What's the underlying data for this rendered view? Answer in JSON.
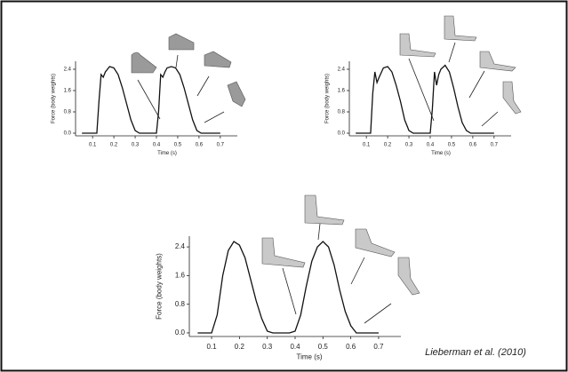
{
  "chart_data": [
    {
      "type": "line",
      "x_label": "Time (s)",
      "y_label": "Force (body weights)",
      "color": "#111111",
      "x": [
        0.05,
        0.12,
        0.13,
        0.14,
        0.15,
        0.16,
        0.18,
        0.2,
        0.22,
        0.24,
        0.26,
        0.28,
        0.3,
        0.32,
        0.4,
        0.41,
        0.42,
        0.43,
        0.44,
        0.45,
        0.47,
        0.49,
        0.51,
        0.53,
        0.55,
        0.57,
        0.59,
        0.61,
        0.7
      ],
      "values": [
        0,
        0,
        1.2,
        2.2,
        2.1,
        2.3,
        2.5,
        2.45,
        2.2,
        1.7,
        1.1,
        0.5,
        0.1,
        0,
        0,
        0.8,
        2.2,
        2.1,
        2.3,
        2.45,
        2.5,
        2.45,
        2.2,
        1.7,
        1.1,
        0.5,
        0.1,
        0,
        0
      ],
      "xlim": [
        0.02,
        0.78
      ],
      "ylim": [
        -0.1,
        2.7
      ],
      "xticks": [
        0.1,
        0.2,
        0.3,
        0.4,
        0.5,
        0.6,
        0.7
      ],
      "yticks": [
        {
          "value": 0,
          "label": "0.0"
        },
        0.8,
        1.6,
        2.4
      ]
    },
    {
      "type": "line",
      "x_label": "Time (s)",
      "y_label": "Force (body weights)",
      "color": "#111111",
      "x": [
        0.05,
        0.12,
        0.13,
        0.14,
        0.15,
        0.16,
        0.18,
        0.2,
        0.22,
        0.24,
        0.26,
        0.28,
        0.3,
        0.32,
        0.4,
        0.41,
        0.42,
        0.43,
        0.44,
        0.45,
        0.47,
        0.49,
        0.51,
        0.53,
        0.55,
        0.57,
        0.59,
        0.61,
        0.7
      ],
      "values": [
        0,
        0,
        1.5,
        2.3,
        1.9,
        2.1,
        2.45,
        2.5,
        2.3,
        1.8,
        1.2,
        0.5,
        0.1,
        0,
        0,
        0.9,
        2.3,
        1.8,
        2.2,
        2.4,
        2.55,
        2.3,
        1.7,
        1.0,
        0.4,
        0.1,
        0,
        0,
        0
      ],
      "xlim": [
        0.02,
        0.78
      ],
      "ylim": [
        -0.1,
        2.7
      ],
      "xticks": [
        0.1,
        0.2,
        0.3,
        0.4,
        0.5,
        0.6,
        0.7
      ],
      "yticks": [
        {
          "value": 0,
          "label": "0.0"
        },
        0.8,
        1.6,
        2.4
      ]
    },
    {
      "type": "line",
      "x_label": "Time (s)",
      "y_label": "Force (body weights)",
      "color": "#111111",
      "x": [
        0.05,
        0.1,
        0.12,
        0.14,
        0.16,
        0.18,
        0.2,
        0.22,
        0.24,
        0.26,
        0.28,
        0.3,
        0.32,
        0.38,
        0.4,
        0.42,
        0.44,
        0.46,
        0.48,
        0.5,
        0.52,
        0.54,
        0.56,
        0.58,
        0.6,
        0.62,
        0.7
      ],
      "values": [
        0,
        0,
        0.5,
        1.6,
        2.3,
        2.55,
        2.45,
        2.1,
        1.5,
        0.9,
        0.4,
        0.05,
        0,
        0,
        0.05,
        0.5,
        1.3,
        2.0,
        2.4,
        2.55,
        2.4,
        1.9,
        1.2,
        0.6,
        0.2,
        0,
        0
      ],
      "xlim": [
        0.02,
        0.78
      ],
      "ylim": [
        -0.1,
        2.7
      ],
      "xticks": [
        0.1,
        0.2,
        0.3,
        0.4,
        0.5,
        0.6,
        0.7
      ],
      "yticks": [
        {
          "value": 0,
          "label": "0.0"
        },
        0.8,
        1.6,
        2.4
      ]
    }
  ],
  "citation": "Lieberman et al. (2010)"
}
